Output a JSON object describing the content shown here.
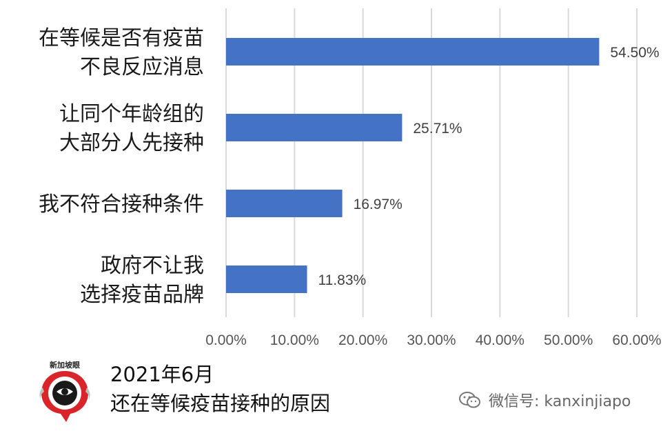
{
  "chart_data": {
    "type": "bar",
    "orientation": "horizontal",
    "categories": [
      [
        "在等候是否有疫苗",
        "不良反应消息"
      ],
      [
        "让同个年龄组的",
        "大部分人先接种"
      ],
      [
        "我不符合接种条件"
      ],
      [
        "政府不让我",
        "选择疫苗品牌"
      ]
    ],
    "values": [
      54.5,
      25.71,
      16.97,
      11.83
    ],
    "value_labels": [
      "54.50%",
      "25.71%",
      "16.97%",
      "11.83%"
    ],
    "xlim": [
      0,
      60
    ],
    "xticks": [
      0,
      10,
      20,
      30,
      40,
      50,
      60
    ],
    "xtick_labels": [
      "0.00%",
      "10.00%",
      "20.00%",
      "30.00%",
      "40.00%",
      "50.00%",
      "60.00%"
    ],
    "grid": true,
    "bar_color": "#4472C4",
    "title": "",
    "xlabel": "",
    "ylabel": ""
  },
  "caption": {
    "line1": "2021年6月",
    "line2": "还在等候疫苗接种的原因"
  },
  "logo": {
    "text": "新加坡眼",
    "icon": "eye-logo-icon"
  },
  "watermark": {
    "text": "微信号: kanxinjiapo",
    "icon": "wechat-icon"
  }
}
